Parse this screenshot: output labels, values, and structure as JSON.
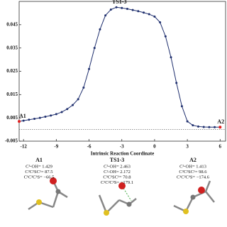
{
  "chart_data": {
    "type": "line",
    "x_label": "Intrinsic Reaction Coordinate",
    "xlim": [
      -12.4,
      6.5
    ],
    "xticks": [
      -12,
      -9,
      -6,
      -3,
      0,
      3,
      6
    ],
    "ylim": [
      -0.005,
      0.055
    ],
    "yticks": [
      0.045,
      0.035,
      0.025,
      0.015,
      0.005,
      -0.005
    ],
    "reference_line": 0,
    "series": [
      {
        "color": "#1f2f6e",
        "x": [
          -12.4,
          -12,
          -11.5,
          -11,
          -10.5,
          -10,
          -9.5,
          -9,
          -8.5,
          -8,
          -7.5,
          -7,
          -6.5,
          -6,
          -5.5,
          -5,
          -4.5,
          -4,
          -3.5,
          -3,
          -2.5,
          -2,
          -1.5,
          -1,
          -0.5,
          0,
          0.5,
          1,
          1.5,
          2,
          2.5,
          3,
          3.5,
          4,
          4.5,
          5,
          5.5,
          6
        ],
        "values": [
          0.0035,
          0.0038,
          0.0042,
          0.0046,
          0.005,
          0.0055,
          0.006,
          0.0066,
          0.0075,
          0.0088,
          0.0105,
          0.013,
          0.018,
          0.026,
          0.035,
          0.043,
          0.049,
          0.0515,
          0.0525,
          0.0522,
          0.0518,
          0.0513,
          0.0508,
          0.0502,
          0.0495,
          0.0485,
          0.046,
          0.04,
          0.031,
          0.02,
          0.01,
          0.0035,
          0.0018,
          0.0013,
          0.0011,
          0.001,
          0.001,
          0.001
        ]
      }
    ],
    "annotations": [
      {
        "text": "A1",
        "index": 0,
        "color": "#e02020"
      },
      {
        "text": "TS1-3",
        "index": 18
      },
      {
        "text": "A2",
        "index": 37,
        "color": "#e02020"
      }
    ]
  },
  "structures": [
    {
      "name": "A1",
      "lines": [
        "C³-OH= 1.429",
        "C³C²SC¹= 87.5",
        "C¹C²C³S= −66.5"
      ]
    },
    {
      "name": "TS1-3",
      "lines": [
        "C³-OH= 2.463",
        "C²-OH= 2.172",
        "C³C²SC¹= 70.8",
        "C¹C²C³S= −179.1"
      ]
    },
    {
      "name": "A2",
      "lines": [
        "C³-OH= 1.413",
        "C³C²SC¹= 98.6",
        "C¹C²C³S= −174.6"
      ]
    }
  ]
}
